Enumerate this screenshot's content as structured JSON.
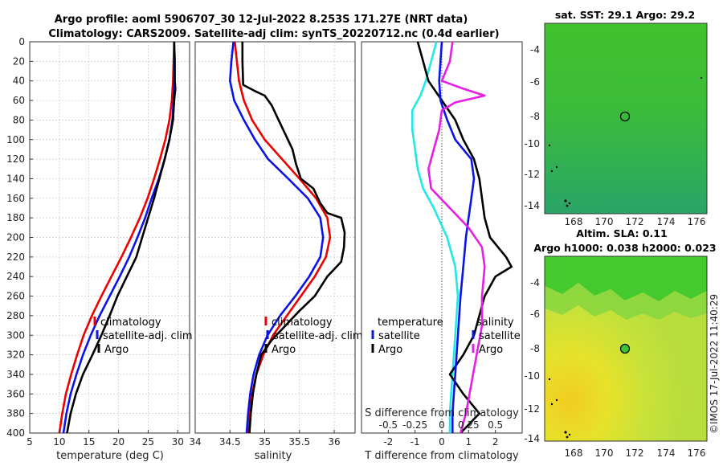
{
  "header": {
    "line1": "Argo profile: aoml 5906707_30 12-Jul-2022 8.253S 171.27E (NRT data)",
    "line2": "Climatology: CARS2009. Satellite-adj clim: synTS_20220712.nc (0.4d earlier)"
  },
  "colors": {
    "climatology": "#ee0000",
    "satellite": "#0a14e6",
    "argo": "#000000",
    "temperature_diff": "#22e8e8",
    "salinity_diff": "#e61ee6"
  },
  "chart_data": [
    {
      "type": "line",
      "name": "temperature-panel",
      "xlabel": "temperature (deg C)",
      "ylabel": "",
      "xlim": [
        5,
        32
      ],
      "ylim": [
        400,
        0
      ],
      "xticks": [
        5,
        10,
        15,
        20,
        25,
        30
      ],
      "yticks": [
        0,
        20,
        40,
        60,
        80,
        100,
        120,
        140,
        160,
        180,
        200,
        220,
        240,
        260,
        280,
        300,
        320,
        340,
        360,
        380,
        400
      ],
      "grid": true,
      "legend": [
        "climatology",
        "satellite-adj. clim",
        "Argo"
      ],
      "series": [
        {
          "name": "climatology",
          "color_key": "climatology",
          "points": [
            [
              29.4,
              0
            ],
            [
              29.3,
              20
            ],
            [
              29.2,
              40
            ],
            [
              29.0,
              60
            ],
            [
              28.6,
              80
            ],
            [
              27.9,
              100
            ],
            [
              27.0,
              120
            ],
            [
              26.0,
              140
            ],
            [
              24.9,
              160
            ],
            [
              23.6,
              180
            ],
            [
              22.1,
              200
            ],
            [
              20.5,
              220
            ],
            [
              18.8,
              240
            ],
            [
              17.1,
              260
            ],
            [
              15.5,
              280
            ],
            [
              14.1,
              300
            ],
            [
              13.0,
              320
            ],
            [
              12.0,
              340
            ],
            [
              11.1,
              360
            ],
            [
              10.5,
              380
            ],
            [
              10.0,
              400
            ]
          ]
        },
        {
          "name": "satellite-adj. clim",
          "color_key": "satellite",
          "points": [
            [
              29.4,
              0
            ],
            [
              29.4,
              20
            ],
            [
              29.4,
              40
            ],
            [
              29.3,
              60
            ],
            [
              29.1,
              80
            ],
            [
              28.6,
              100
            ],
            [
              27.8,
              120
            ],
            [
              26.8,
              140
            ],
            [
              25.6,
              160
            ],
            [
              24.5,
              180
            ],
            [
              23.2,
              200
            ],
            [
              21.8,
              220
            ],
            [
              20.2,
              240
            ],
            [
              18.5,
              260
            ],
            [
              16.8,
              280
            ],
            [
              15.3,
              300
            ],
            [
              14.0,
              320
            ],
            [
              12.9,
              340
            ],
            [
              11.9,
              360
            ],
            [
              11.2,
              380
            ],
            [
              10.7,
              400
            ]
          ]
        },
        {
          "name": "Argo",
          "color_key": "argo",
          "points": [
            [
              29.4,
              0
            ],
            [
              29.5,
              20
            ],
            [
              29.5,
              40
            ],
            [
              29.6,
              48
            ],
            [
              29.4,
              60
            ],
            [
              29.2,
              80
            ],
            [
              28.6,
              100
            ],
            [
              27.8,
              120
            ],
            [
              26.9,
              140
            ],
            [
              26.0,
              160
            ],
            [
              25.0,
              180
            ],
            [
              24.0,
              200
            ],
            [
              23.0,
              220
            ],
            [
              21.4,
              240
            ],
            [
              19.8,
              260
            ],
            [
              18.5,
              280
            ],
            [
              17.1,
              300
            ],
            [
              15.6,
              320
            ],
            [
              14.0,
              340
            ],
            [
              12.8,
              360
            ],
            [
              11.9,
              380
            ],
            [
              11.3,
              400
            ]
          ]
        }
      ]
    },
    {
      "type": "line",
      "name": "salinity-panel",
      "xlabel": "salinity",
      "xlim": [
        34,
        36.3
      ],
      "ylim": [
        400,
        0
      ],
      "xticks": [
        34,
        34.5,
        35,
        35.5,
        36
      ],
      "grid": true,
      "legend": [
        "climatology",
        "satellite-adj. clim",
        "Argo"
      ],
      "series": [
        {
          "name": "climatology",
          "color_key": "climatology",
          "points": [
            [
              34.57,
              0
            ],
            [
              34.6,
              20
            ],
            [
              34.63,
              40
            ],
            [
              34.7,
              60
            ],
            [
              34.82,
              80
            ],
            [
              35.0,
              100
            ],
            [
              35.25,
              120
            ],
            [
              35.5,
              140
            ],
            [
              35.74,
              160
            ],
            [
              35.9,
              180
            ],
            [
              35.94,
              200
            ],
            [
              35.88,
              220
            ],
            [
              35.72,
              240
            ],
            [
              35.52,
              260
            ],
            [
              35.32,
              280
            ],
            [
              35.12,
              300
            ],
            [
              34.98,
              320
            ],
            [
              34.88,
              340
            ],
            [
              34.82,
              360
            ],
            [
              34.78,
              380
            ],
            [
              34.76,
              400
            ]
          ]
        },
        {
          "name": "satellite-adj. clim",
          "color_key": "satellite",
          "points": [
            [
              34.55,
              0
            ],
            [
              34.52,
              20
            ],
            [
              34.5,
              40
            ],
            [
              34.56,
              60
            ],
            [
              34.7,
              80
            ],
            [
              34.86,
              100
            ],
            [
              35.05,
              120
            ],
            [
              35.34,
              140
            ],
            [
              35.62,
              160
            ],
            [
              35.8,
              180
            ],
            [
              35.84,
              200
            ],
            [
              35.8,
              220
            ],
            [
              35.64,
              240
            ],
            [
              35.44,
              260
            ],
            [
              35.22,
              280
            ],
            [
              35.04,
              300
            ],
            [
              34.92,
              320
            ],
            [
              34.84,
              340
            ],
            [
              34.79,
              360
            ],
            [
              34.76,
              380
            ],
            [
              34.74,
              400
            ]
          ]
        },
        {
          "name": "Argo",
          "color_key": "argo",
          "points": [
            [
              34.68,
              0
            ],
            [
              34.68,
              20
            ],
            [
              34.69,
              44
            ],
            [
              34.85,
              50
            ],
            [
              35.0,
              55
            ],
            [
              35.1,
              65
            ],
            [
              35.2,
              80
            ],
            [
              35.3,
              95
            ],
            [
              35.4,
              110
            ],
            [
              35.45,
              125
            ],
            [
              35.52,
              140
            ],
            [
              35.7,
              150
            ],
            [
              35.8,
              165
            ],
            [
              35.9,
              175
            ],
            [
              36.1,
              180
            ],
            [
              36.15,
              195
            ],
            [
              36.14,
              210
            ],
            [
              36.1,
              225
            ],
            [
              35.9,
              240
            ],
            [
              35.72,
              260
            ],
            [
              35.5,
              275
            ],
            [
              35.3,
              290
            ],
            [
              35.1,
              305
            ],
            [
              34.95,
              320
            ],
            [
              34.88,
              340
            ],
            [
              34.83,
              360
            ],
            [
              34.8,
              380
            ],
            [
              34.78,
              400
            ]
          ]
        }
      ]
    },
    {
      "type": "line",
      "name": "difference-panel",
      "xlabel": "T difference from climatology",
      "top_axis_label": "S difference from climatology",
      "xlim": [
        -3,
        3
      ],
      "ylim": [
        400,
        0
      ],
      "xticks": [
        -2,
        -1,
        0,
        1,
        2
      ],
      "top_tick_labels": [
        "-0.5",
        "-0.25",
        "0",
        "0.25",
        "0.5"
      ],
      "grid": false,
      "zero_line": true,
      "legend_left": [
        "temperature",
        "satellite",
        "Argo"
      ],
      "legend_right": [
        "salinity",
        "satellite",
        "Argo"
      ],
      "series": [
        {
          "name": "temperature satellite",
          "color_key": "temperature_diff",
          "points": [
            [
              -0.2,
              0
            ],
            [
              -0.4,
              20
            ],
            [
              -0.6,
              40
            ],
            [
              -0.8,
              55
            ],
            [
              -1.1,
              70
            ],
            [
              -1.1,
              90
            ],
            [
              -1.0,
              110
            ],
            [
              -0.9,
              130
            ],
            [
              -0.7,
              150
            ],
            [
              -0.3,
              170
            ],
            [
              0.2,
              200
            ],
            [
              0.5,
              230
            ],
            [
              0.6,
              260
            ],
            [
              0.5,
              300
            ],
            [
              0.4,
              340
            ],
            [
              0.3,
              380
            ],
            [
              0.3,
              400
            ]
          ]
        },
        {
          "name": "temperature Argo",
          "color_key": "argo",
          "points": [
            [
              -0.9,
              0
            ],
            [
              -0.7,
              20
            ],
            [
              -0.5,
              40
            ],
            [
              0.0,
              60
            ],
            [
              0.5,
              80
            ],
            [
              0.8,
              100
            ],
            [
              1.2,
              120
            ],
            [
              1.4,
              140
            ],
            [
              1.5,
              160
            ],
            [
              1.6,
              180
            ],
            [
              1.8,
              200
            ],
            [
              2.4,
              220
            ],
            [
              2.6,
              230
            ],
            [
              2.0,
              240
            ],
            [
              1.6,
              260
            ],
            [
              1.4,
              280
            ],
            [
              1.2,
              300
            ],
            [
              0.8,
              320
            ],
            [
              0.3,
              340
            ],
            [
              0.8,
              360
            ],
            [
              1.4,
              380
            ],
            [
              0.7,
              400
            ]
          ]
        },
        {
          "name": "salinity satellite",
          "color_key": "satellite",
          "points": [
            [
              0.0,
              0
            ],
            [
              -0.05,
              20
            ],
            [
              -0.1,
              40
            ],
            [
              -0.05,
              60
            ],
            [
              0.2,
              80
            ],
            [
              0.5,
              100
            ],
            [
              1.1,
              120
            ],
            [
              1.2,
              140
            ],
            [
              1.1,
              160
            ],
            [
              1.0,
              180
            ],
            [
              0.9,
              200
            ],
            [
              0.8,
              230
            ],
            [
              0.7,
              260
            ],
            [
              0.6,
              300
            ],
            [
              0.5,
              340
            ],
            [
              0.4,
              380
            ],
            [
              0.4,
              400
            ]
          ]
        },
        {
          "name": "salinity Argo",
          "color_key": "salinity_diff",
          "points": [
            [
              0.4,
              0
            ],
            [
              0.3,
              20
            ],
            [
              0.0,
              40
            ],
            [
              0.8,
              48
            ],
            [
              1.6,
              55
            ],
            [
              0.5,
              62
            ],
            [
              0.0,
              70
            ],
            [
              -0.1,
              90
            ],
            [
              -0.3,
              110
            ],
            [
              -0.5,
              130
            ],
            [
              -0.4,
              150
            ],
            [
              0.3,
              170
            ],
            [
              1.0,
              190
            ],
            [
              1.5,
              210
            ],
            [
              1.6,
              230
            ],
            [
              1.5,
              260
            ],
            [
              1.5,
              290
            ],
            [
              1.3,
              320
            ],
            [
              1.1,
              350
            ],
            [
              0.9,
              380
            ],
            [
              0.7,
              400
            ]
          ]
        }
      ]
    }
  ],
  "maps": {
    "sst": {
      "title": "sat. SST: 29.1 Argo: 29.2",
      "yticks": [
        "-4",
        "-6",
        "-8",
        "-10",
        "-12",
        "-14"
      ],
      "xticks": [
        "168",
        "170",
        "172",
        "174",
        "176"
      ]
    },
    "sla": {
      "title1": "Altim. SLA: 0.11",
      "title2": "Argo h1000: 0.038 h2000: 0.023",
      "yticks": [
        "-4",
        "-6",
        "-8",
        "-10",
        "-12",
        "-14"
      ],
      "xticks": [
        "168",
        "170",
        "172",
        "174",
        "176"
      ]
    }
  },
  "credit": "©IMOS 17-Jul-2022 11:40:29"
}
